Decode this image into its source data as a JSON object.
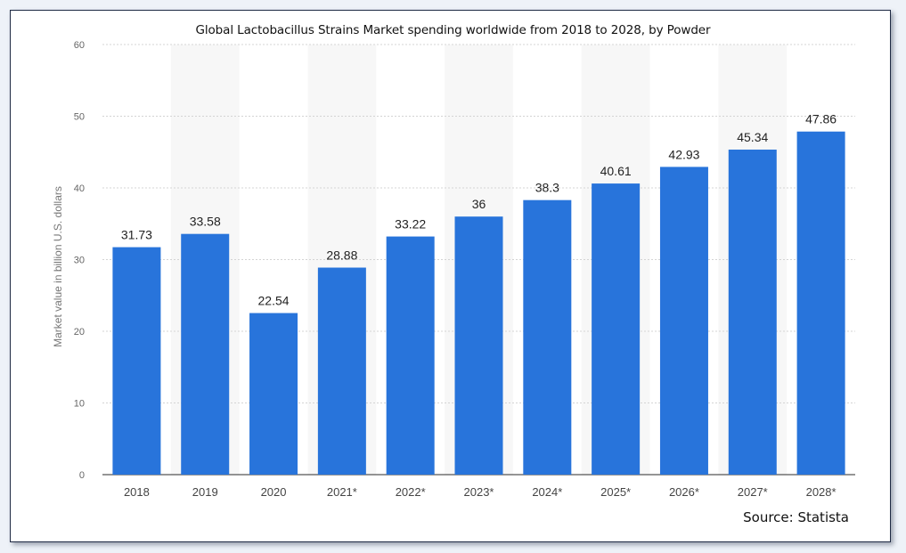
{
  "chart_data": {
    "type": "bar",
    "title": "Global Lactobacillus Strains Market spending worldwide from 2018 to 2028, by Powder",
    "xlabel": "",
    "ylabel": "Market value in billion U.S. dollars",
    "ylim": [
      0,
      60
    ],
    "yticks": [
      0,
      10,
      20,
      30,
      40,
      50,
      60
    ],
    "categories": [
      "2018",
      "2019",
      "2020",
      "2021*",
      "2022*",
      "2023*",
      "2024*",
      "2025*",
      "2026*",
      "2027*",
      "2028*"
    ],
    "values": [
      31.73,
      33.58,
      22.54,
      28.88,
      33.22,
      36,
      38.3,
      40.61,
      42.93,
      45.34,
      47.86
    ],
    "value_labels": [
      "31.73",
      "33.58",
      "22.54",
      "28.88",
      "33.22",
      "36",
      "38.3",
      "40.61",
      "42.93",
      "45.34",
      "47.86"
    ],
    "grid": true,
    "legend": "none",
    "bar_color": "#2874db",
    "alt_band_color": "#f7f7f7"
  },
  "source": "Source: Statista"
}
